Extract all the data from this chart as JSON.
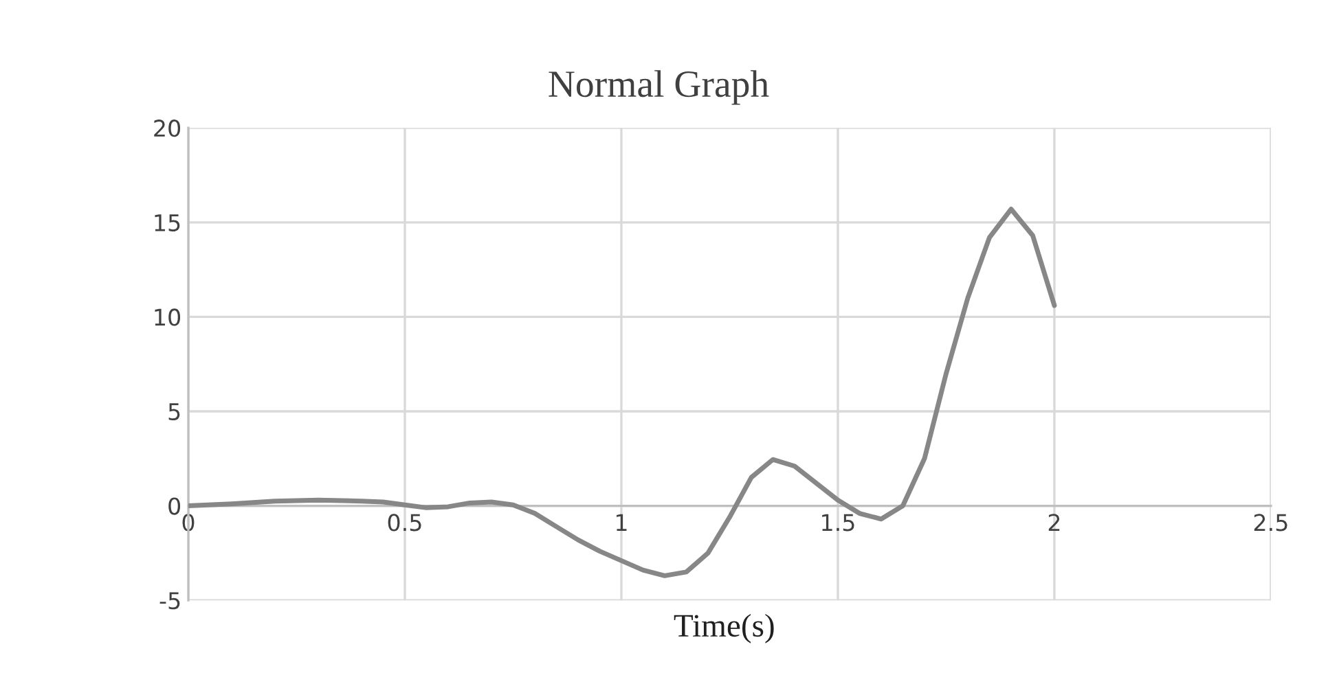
{
  "chart_data": {
    "type": "line",
    "title": "Normal Graph",
    "xlabel": "Time(s)",
    "x": [
      0,
      0.1,
      0.2,
      0.3,
      0.4,
      0.45,
      0.5,
      0.55,
      0.6,
      0.65,
      0.7,
      0.75,
      0.8,
      0.85,
      0.9,
      0.95,
      1.0,
      1.05,
      1.1,
      1.15,
      1.2,
      1.25,
      1.3,
      1.35,
      1.4,
      1.45,
      1.5,
      1.55,
      1.6,
      1.65,
      1.7,
      1.75,
      1.8,
      1.85,
      1.9,
      1.95,
      2.0
    ],
    "series": [
      {
        "color": "#878787",
        "values": [
          0,
          0.1,
          0.25,
          0.3,
          0.25,
          0.2,
          0.05,
          -0.1,
          -0.05,
          0.15,
          0.2,
          0.05,
          -0.4,
          -1.1,
          -1.8,
          -2.4,
          -2.9,
          -3.4,
          -3.7,
          -3.5,
          -2.5,
          -0.6,
          1.5,
          2.45,
          2.1,
          1.2,
          0.3,
          -0.4,
          -0.7,
          0.0,
          2.5,
          7.0,
          11.0,
          14.2,
          15.7,
          14.3,
          10.6
        ]
      }
    ],
    "xlim": [
      0,
      2.5
    ],
    "xticks": [
      0,
      0.5,
      1,
      1.5,
      2,
      2.5
    ],
    "ylim": [
      -5,
      20
    ],
    "yticks": [
      -5,
      0,
      5,
      10,
      15,
      20
    ],
    "grid": true,
    "legend": false,
    "marker": "none",
    "line_style": "solid"
  }
}
